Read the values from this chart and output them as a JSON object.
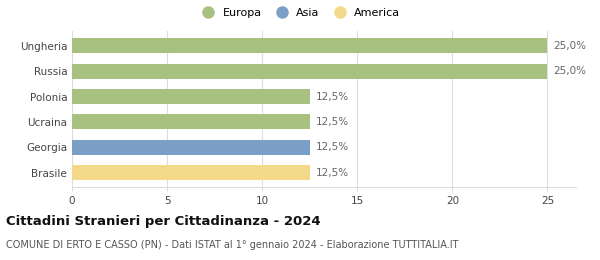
{
  "categories": [
    "Ungheria",
    "Russia",
    "Polonia",
    "Ucraina",
    "Georgia",
    "Brasile"
  ],
  "values": [
    25.0,
    25.0,
    12.5,
    12.5,
    12.5,
    12.5
  ],
  "bar_colors": [
    "#a8c080",
    "#a8c080",
    "#a8c080",
    "#a8c080",
    "#7b9fc7",
    "#f5d98b"
  ],
  "continent_colors": {
    "Europa": "#a8c080",
    "Asia": "#7b9fc7",
    "America": "#f5d98b"
  },
  "legend_labels": [
    "Europa",
    "Asia",
    "America"
  ],
  "xlim": [
    0,
    25
  ],
  "xticks": [
    0,
    5,
    10,
    15,
    20,
    25
  ],
  "title": "Cittadini Stranieri per Cittadinanza - 2024",
  "subtitle": "COMUNE DI ERTO E CASSO (PN) - Dati ISTAT al 1° gennaio 2024 - Elaborazione TUTTITALIA.IT",
  "title_fontsize": 9.5,
  "subtitle_fontsize": 7,
  "label_fontsize": 7.5,
  "tick_fontsize": 7.5,
  "legend_fontsize": 8,
  "background_color": "#ffffff",
  "grid_color": "#dddddd",
  "bar_height": 0.6
}
